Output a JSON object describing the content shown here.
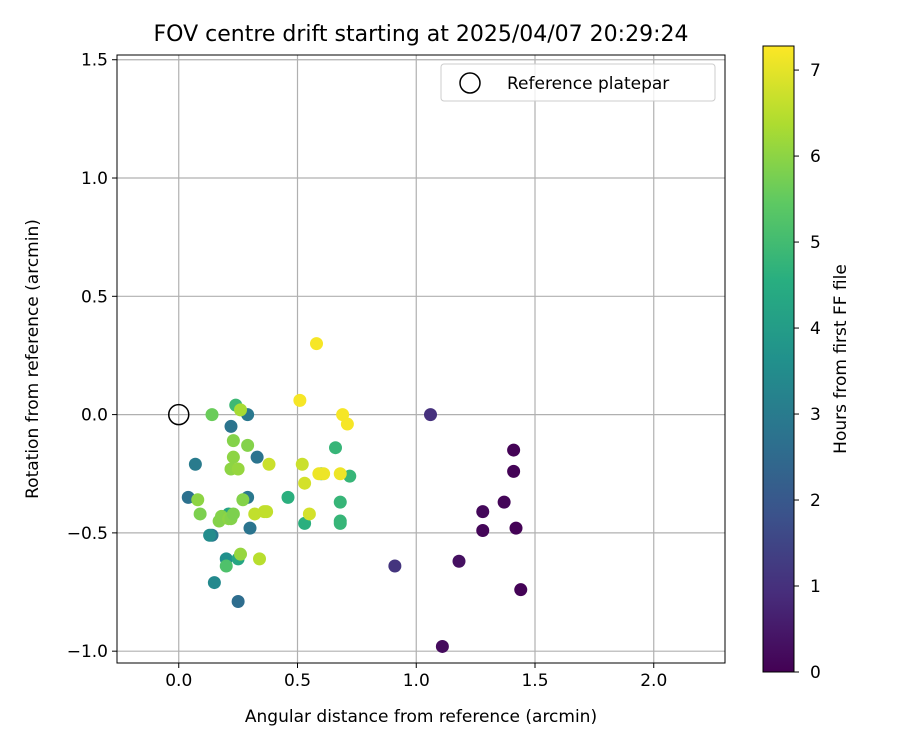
{
  "chart_data": {
    "type": "scatter",
    "title": "FOV centre drift starting at 2025/04/07 20:29:24",
    "xlabel": "Angular distance from reference (arcmin)",
    "ylabel": "Rotation from reference (arcmin)",
    "xlim": [
      -0.26,
      2.3
    ],
    "ylim": [
      -1.05,
      1.52
    ],
    "xticks": [
      0.0,
      0.5,
      1.0,
      1.5,
      2.0
    ],
    "xtick_labels": [
      "0.0",
      "0.5",
      "1.0",
      "1.5",
      "2.0"
    ],
    "yticks": [
      -1.0,
      -0.5,
      0.0,
      0.5,
      1.0,
      1.5
    ],
    "ytick_labels": [
      "−1.0",
      "−0.5",
      "0.0",
      "0.5",
      "1.0",
      "1.5"
    ],
    "grid": true,
    "legend": {
      "placement": "top-right",
      "entries": [
        "Reference platepar"
      ]
    },
    "reference_point": {
      "x": 0.0,
      "y": 0.0,
      "name": "Reference platepar"
    },
    "colorbar": {
      "label": "Hours from first FF file",
      "colormap": "viridis",
      "range": [
        0,
        7.28
      ],
      "ticks": [
        0,
        1,
        2,
        3,
        4,
        5,
        6,
        7
      ],
      "tick_labels": [
        "0",
        "1",
        "2",
        "3",
        "4",
        "5",
        "6",
        "7"
      ]
    },
    "points": [
      {
        "x": 1.41,
        "y": -0.15,
        "h": 0.05
      },
      {
        "x": 1.41,
        "y": -0.24,
        "h": 0.05
      },
      {
        "x": 1.37,
        "y": -0.37,
        "h": 0.1
      },
      {
        "x": 1.28,
        "y": -0.41,
        "h": 0.15
      },
      {
        "x": 1.28,
        "y": -0.49,
        "h": 0.1
      },
      {
        "x": 1.42,
        "y": -0.48,
        "h": 0.05
      },
      {
        "x": 1.18,
        "y": -0.62,
        "h": 0.3
      },
      {
        "x": 1.44,
        "y": -0.74,
        "h": 0.05
      },
      {
        "x": 1.11,
        "y": -0.98,
        "h": 0.2
      },
      {
        "x": 1.06,
        "y": 0.0,
        "h": 1.0
      },
      {
        "x": 0.91,
        "y": -0.64,
        "h": 1.1
      },
      {
        "x": 0.25,
        "y": -0.79,
        "h": 2.6
      },
      {
        "x": 0.04,
        "y": -0.35,
        "h": 2.7
      },
      {
        "x": 0.07,
        "y": -0.21,
        "h": 3.0
      },
      {
        "x": 0.14,
        "y": -0.51,
        "h": 2.9
      },
      {
        "x": 0.22,
        "y": -0.05,
        "h": 2.8
      },
      {
        "x": 0.29,
        "y": 0.0,
        "h": 2.9
      },
      {
        "x": 0.33,
        "y": -0.18,
        "h": 2.8
      },
      {
        "x": 0.29,
        "y": -0.35,
        "h": 2.9
      },
      {
        "x": 0.3,
        "y": -0.48,
        "h": 2.8
      },
      {
        "x": 0.15,
        "y": -0.71,
        "h": 3.4
      },
      {
        "x": 0.2,
        "y": -0.61,
        "h": 3.6
      },
      {
        "x": 0.13,
        "y": -0.51,
        "h": 3.5
      },
      {
        "x": 0.25,
        "y": -0.61,
        "h": 4.3
      },
      {
        "x": 0.21,
        "y": -0.42,
        "h": 4.2
      },
      {
        "x": 0.24,
        "y": 0.04,
        "h": 4.9
      },
      {
        "x": 0.46,
        "y": -0.35,
        "h": 4.6
      },
      {
        "x": 0.53,
        "y": -0.46,
        "h": 4.6
      },
      {
        "x": 0.6,
        "y": -0.25,
        "h": 4.5
      },
      {
        "x": 0.66,
        "y": -0.14,
        "h": 4.8
      },
      {
        "x": 0.68,
        "y": -0.37,
        "h": 4.8
      },
      {
        "x": 0.68,
        "y": -0.45,
        "h": 4.8
      },
      {
        "x": 0.68,
        "y": -0.46,
        "h": 4.8
      },
      {
        "x": 0.72,
        "y": -0.26,
        "h": 4.8
      },
      {
        "x": 0.2,
        "y": -0.64,
        "h": 5.2
      },
      {
        "x": 0.14,
        "y": 0.0,
        "h": 5.6
      },
      {
        "x": 0.09,
        "y": -0.42,
        "h": 5.8
      },
      {
        "x": 0.17,
        "y": -0.45,
        "h": 5.9
      },
      {
        "x": 0.18,
        "y": -0.43,
        "h": 5.9
      },
      {
        "x": 0.22,
        "y": -0.23,
        "h": 6.0
      },
      {
        "x": 0.23,
        "y": -0.11,
        "h": 5.9
      },
      {
        "x": 0.23,
        "y": -0.18,
        "h": 6.0
      },
      {
        "x": 0.25,
        "y": -0.23,
        "h": 6.1
      },
      {
        "x": 0.21,
        "y": -0.44,
        "h": 6.0
      },
      {
        "x": 0.22,
        "y": -0.44,
        "h": 5.9
      },
      {
        "x": 0.23,
        "y": -0.42,
        "h": 5.8
      },
      {
        "x": 0.29,
        "y": -0.13,
        "h": 5.9
      },
      {
        "x": 0.27,
        "y": -0.36,
        "h": 5.9
      },
      {
        "x": 0.08,
        "y": -0.36,
        "h": 6.0
      },
      {
        "x": 0.26,
        "y": -0.59,
        "h": 6.1
      },
      {
        "x": 0.26,
        "y": 0.02,
        "h": 6.3
      },
      {
        "x": 0.34,
        "y": -0.61,
        "h": 6.5
      },
      {
        "x": 0.32,
        "y": -0.42,
        "h": 6.6
      },
      {
        "x": 0.36,
        "y": -0.41,
        "h": 6.6
      },
      {
        "x": 0.37,
        "y": -0.41,
        "h": 6.6
      },
      {
        "x": 0.38,
        "y": -0.21,
        "h": 6.7
      },
      {
        "x": 0.52,
        "y": -0.21,
        "h": 6.7
      },
      {
        "x": 0.53,
        "y": -0.29,
        "h": 6.8
      },
      {
        "x": 0.55,
        "y": -0.42,
        "h": 6.8
      },
      {
        "x": 0.59,
        "y": -0.25,
        "h": 7.1
      },
      {
        "x": 0.61,
        "y": -0.25,
        "h": 7.1
      },
      {
        "x": 0.68,
        "y": -0.25,
        "h": 7.1
      },
      {
        "x": 0.51,
        "y": 0.06,
        "h": 7.2
      },
      {
        "x": 0.58,
        "y": 0.3,
        "h": 7.2
      },
      {
        "x": 0.69,
        "y": 0.0,
        "h": 7.2
      },
      {
        "x": 0.71,
        "y": -0.04,
        "h": 7.2
      }
    ]
  }
}
